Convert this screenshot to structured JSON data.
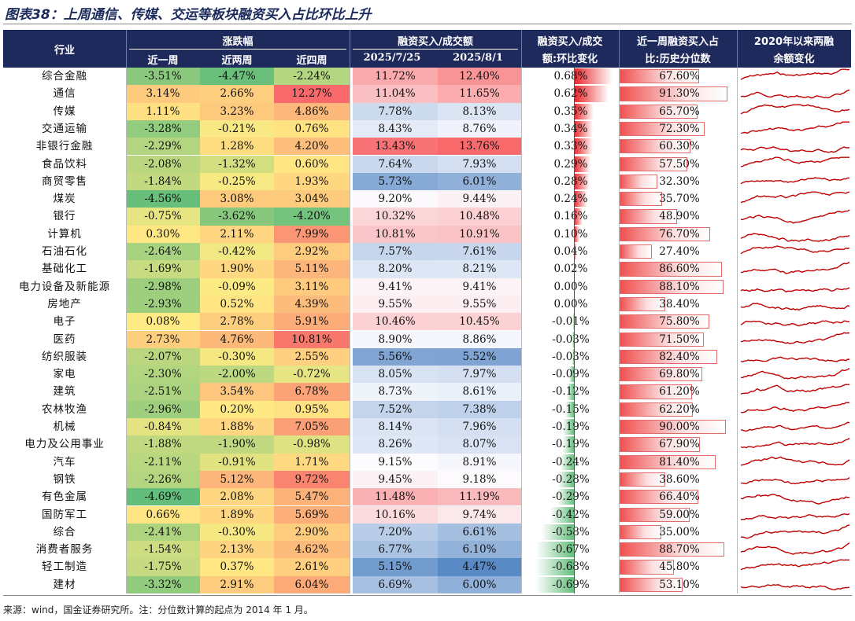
{
  "title": "图表38：上周通信、传媒、交运等板块融资买入占比环比上升",
  "header": {
    "industry": "行业",
    "change_group": "涨跌幅",
    "w1": "近一周",
    "w2": "近两周",
    "w4": "近四周",
    "ratio_group": "融资买入/成交额",
    "d1": "2025/7/25",
    "d2": "2025/8/1",
    "wow_l1": "融资买入/成交",
    "wow_l2": "额:环比变化",
    "pct_l1": "近一周融资买入占",
    "pct_l2": "比:历史分位数",
    "bal_l1": "2020年以来两融",
    "bal_l2": "余额变化"
  },
  "rows": [
    {
      "name": "综合金融",
      "w1": "-3.51%",
      "w2": "-4.47%",
      "w4": "-2.24%",
      "d1": "11.72%",
      "d2": "12.40%",
      "wow": "0.68%",
      "pct": "67.60%"
    },
    {
      "name": "通信",
      "w1": "3.14%",
      "w2": "2.66%",
      "w4": "12.27%",
      "d1": "11.04%",
      "d2": "11.65%",
      "wow": "0.62%",
      "pct": "91.30%"
    },
    {
      "name": "传媒",
      "w1": "1.11%",
      "w2": "3.23%",
      "w4": "4.86%",
      "d1": "7.78%",
      "d2": "8.13%",
      "wow": "0.35%",
      "pct": "65.70%"
    },
    {
      "name": "交通运输",
      "w1": "-3.28%",
      "w2": "-0.21%",
      "w4": "0.76%",
      "d1": "8.43%",
      "d2": "8.76%",
      "wow": "0.34%",
      "pct": "72.30%"
    },
    {
      "name": "非银行金融",
      "w1": "-2.29%",
      "w2": "1.28%",
      "w4": "4.20%",
      "d1": "13.43%",
      "d2": "13.76%",
      "wow": "0.33%",
      "pct": "60.30%"
    },
    {
      "name": "食品饮料",
      "w1": "-2.08%",
      "w2": "-1.32%",
      "w4": "0.60%",
      "d1": "7.64%",
      "d2": "7.93%",
      "wow": "0.29%",
      "pct": "57.50%"
    },
    {
      "name": "商贸零售",
      "w1": "-1.84%",
      "w2": "-0.25%",
      "w4": "1.93%",
      "d1": "5.73%",
      "d2": "6.01%",
      "wow": "0.28%",
      "pct": "32.30%"
    },
    {
      "name": "煤炭",
      "w1": "-4.56%",
      "w2": "3.08%",
      "w4": "3.04%",
      "d1": "9.20%",
      "d2": "9.44%",
      "wow": "0.24%",
      "pct": "35.70%"
    },
    {
      "name": "银行",
      "w1": "-0.75%",
      "w2": "-3.62%",
      "w4": "-4.20%",
      "d1": "10.32%",
      "d2": "10.48%",
      "wow": "0.16%",
      "pct": "48.90%"
    },
    {
      "name": "计算机",
      "w1": "0.30%",
      "w2": "2.11%",
      "w4": "7.99%",
      "d1": "10.81%",
      "d2": "10.91%",
      "wow": "0.10%",
      "pct": "76.70%"
    },
    {
      "name": "石油石化",
      "w1": "-2.64%",
      "w2": "-0.42%",
      "w4": "2.92%",
      "d1": "7.57%",
      "d2": "7.61%",
      "wow": "0.04%",
      "pct": "27.40%"
    },
    {
      "name": "基础化工",
      "w1": "-1.69%",
      "w2": "1.90%",
      "w4": "5.11%",
      "d1": "8.20%",
      "d2": "8.21%",
      "wow": "0.02%",
      "pct": "86.60%"
    },
    {
      "name": "电力设备及新能源",
      "w1": "-2.98%",
      "w2": "-0.09%",
      "w4": "3.11%",
      "d1": "9.41%",
      "d2": "9.41%",
      "wow": "0.00%",
      "pct": "88.10%"
    },
    {
      "name": "房地产",
      "w1": "-2.93%",
      "w2": "0.52%",
      "w4": "4.39%",
      "d1": "9.55%",
      "d2": "9.55%",
      "wow": "0.00%",
      "pct": "38.40%"
    },
    {
      "name": "电子",
      "w1": "0.08%",
      "w2": "2.78%",
      "w4": "5.91%",
      "d1": "10.46%",
      "d2": "10.45%",
      "wow": "-0.01%",
      "pct": "75.80%"
    },
    {
      "name": "医药",
      "w1": "2.73%",
      "w2": "4.76%",
      "w4": "10.81%",
      "d1": "8.90%",
      "d2": "8.86%",
      "wow": "-0.03%",
      "pct": "71.50%"
    },
    {
      "name": "纺织服装",
      "w1": "-2.07%",
      "w2": "-0.30%",
      "w4": "2.55%",
      "d1": "5.56%",
      "d2": "5.52%",
      "wow": "-0.03%",
      "pct": "82.40%"
    },
    {
      "name": "家电",
      "w1": "-2.30%",
      "w2": "-2.00%",
      "w4": "-0.72%",
      "d1": "8.05%",
      "d2": "7.97%",
      "wow": "-0.09%",
      "pct": "69.80%"
    },
    {
      "name": "建筑",
      "w1": "-2.51%",
      "w2": "3.54%",
      "w4": "6.78%",
      "d1": "8.73%",
      "d2": "8.61%",
      "wow": "-0.12%",
      "pct": "61.20%"
    },
    {
      "name": "农林牧渔",
      "w1": "-2.96%",
      "w2": "0.20%",
      "w4": "0.95%",
      "d1": "7.52%",
      "d2": "7.38%",
      "wow": "-0.15%",
      "pct": "62.20%"
    },
    {
      "name": "机械",
      "w1": "-0.84%",
      "w2": "1.88%",
      "w4": "7.05%",
      "d1": "8.14%",
      "d2": "7.96%",
      "wow": "-0.19%",
      "pct": "90.00%"
    },
    {
      "name": "电力及公用事业",
      "w1": "-1.88%",
      "w2": "-1.90%",
      "w4": "-0.98%",
      "d1": "8.26%",
      "d2": "8.07%",
      "wow": "-0.19%",
      "pct": "67.90%"
    },
    {
      "name": "汽车",
      "w1": "-2.11%",
      "w2": "-0.91%",
      "w4": "1.71%",
      "d1": "9.15%",
      "d2": "8.91%",
      "wow": "-0.24%",
      "pct": "81.40%"
    },
    {
      "name": "钢铁",
      "w1": "-2.26%",
      "w2": "5.12%",
      "w4": "9.72%",
      "d1": "9.45%",
      "d2": "9.18%",
      "wow": "-0.28%",
      "pct": "38.60%"
    },
    {
      "name": "有色金属",
      "w1": "-4.69%",
      "w2": "2.08%",
      "w4": "5.47%",
      "d1": "11.48%",
      "d2": "11.19%",
      "wow": "-0.29%",
      "pct": "66.40%"
    },
    {
      "name": "国防军工",
      "w1": "0.66%",
      "w2": "1.89%",
      "w4": "5.69%",
      "d1": "10.16%",
      "d2": "9.74%",
      "wow": "-0.42%",
      "pct": "59.00%"
    },
    {
      "name": "综合",
      "w1": "-2.41%",
      "w2": "-0.30%",
      "w4": "2.90%",
      "d1": "7.20%",
      "d2": "6.61%",
      "wow": "-0.58%",
      "pct": "35.00%"
    },
    {
      "name": "消费者服务",
      "w1": "-1.54%",
      "w2": "2.13%",
      "w4": "4.62%",
      "d1": "6.77%",
      "d2": "6.10%",
      "wow": "-0.67%",
      "pct": "88.70%"
    },
    {
      "name": "轻工制造",
      "w1": "-1.75%",
      "w2": "0.37%",
      "w4": "2.61%",
      "d1": "5.15%",
      "d2": "4.47%",
      "wow": "-0.68%",
      "pct": "45.80%"
    },
    {
      "name": "建材",
      "w1": "-3.32%",
      "w2": "2.91%",
      "w4": "6.04%",
      "d1": "6.69%",
      "d2": "6.00%",
      "wow": "-0.69%",
      "pct": "53.10%"
    }
  ],
  "colors": {
    "header_bg": "#1f2a5c",
    "neg_green": "#63be7b",
    "mid_yellow": "#ffeb84",
    "pos_red": "#f8696b",
    "low_blue": "#5a8ac6",
    "mid_white": "#fcfcff",
    "bar_red": "#e8262a",
    "bar_green": "#63be7b",
    "spark_red": "#c00000"
  },
  "footer": "来源：wind，国金证券研究所。注：分位数计算的起点为 2014 年 1 月。"
}
